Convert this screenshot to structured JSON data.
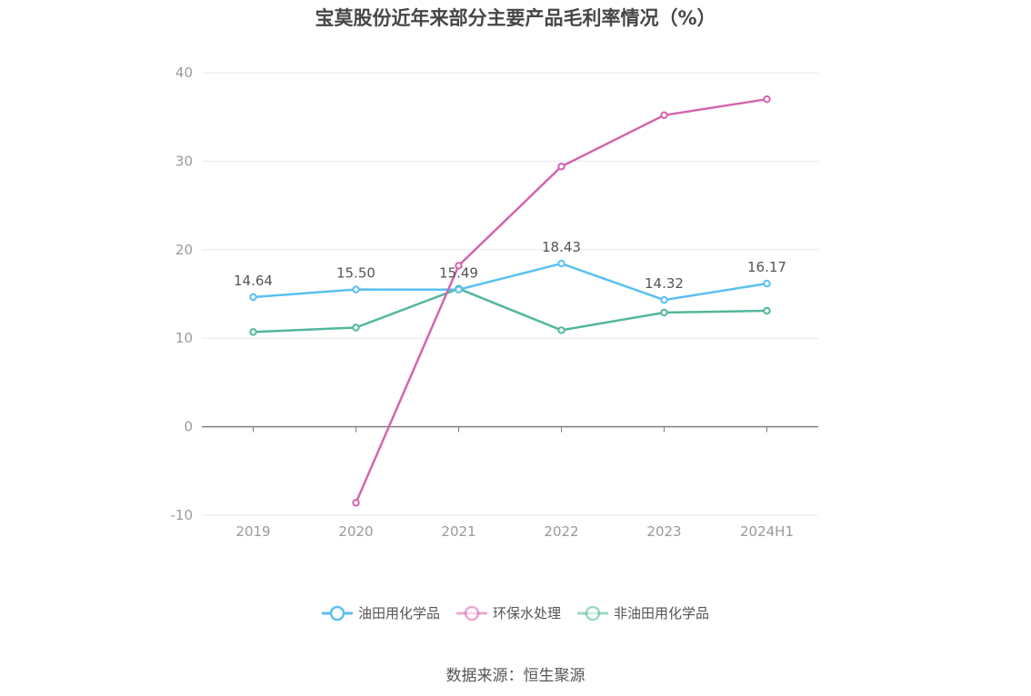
{
  "title": "宝莫股份近年来部分主要产品毛利率情况（%）",
  "source": "数据来源：恒生聚源",
  "chart_data": {
    "type": "line",
    "title": "宝莫股份近年来部分主要产品毛利率情况（%）",
    "categories": [
      "2019",
      "2020",
      "2021",
      "2022",
      "2023",
      "2024H1"
    ],
    "ylim": [
      -10,
      40
    ],
    "yticks": [
      -10,
      0,
      10,
      20,
      30,
      40
    ],
    "grid": true,
    "legend_position": "bottom",
    "series": [
      {
        "name": "油田用化学品",
        "color": "#5bc0f0",
        "values": [
          14.64,
          15.5,
          15.49,
          18.43,
          14.32,
          16.17
        ],
        "show_labels": true
      },
      {
        "name": "环保水处理",
        "color": "#d465b0",
        "values": [
          null,
          -8.6,
          18.2,
          29.4,
          35.2,
          37.0
        ],
        "show_labels": false
      },
      {
        "name": "非油田用化学品",
        "color": "#52b79c",
        "values": [
          10.7,
          11.2,
          15.6,
          10.9,
          12.9,
          13.1
        ],
        "show_labels": false
      }
    ],
    "data_labels": [
      "14.64",
      "15.50",
      "15.49",
      "18.43",
      "14.32",
      "16.17"
    ]
  }
}
